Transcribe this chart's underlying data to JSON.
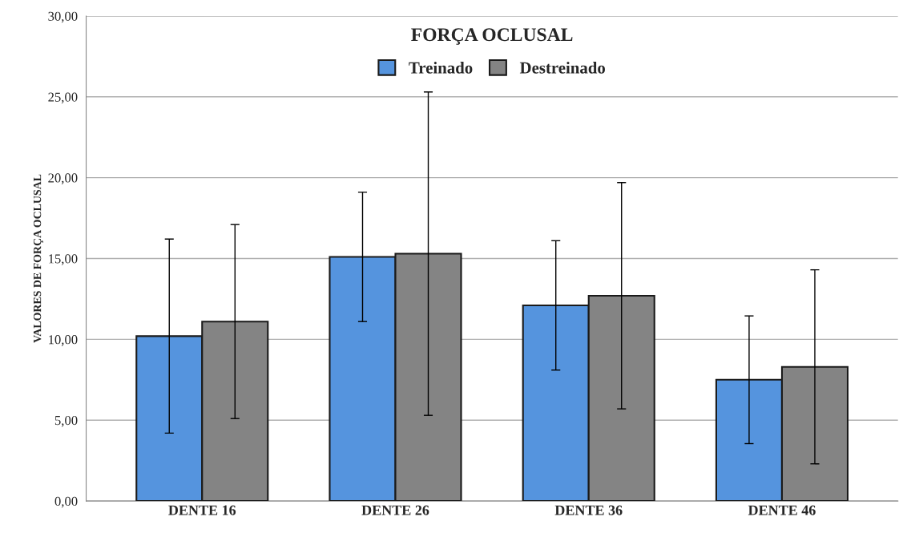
{
  "chart_data": {
    "type": "bar",
    "title": "FORÇA OCLUSAL",
    "ylabel": "VALORES DE FORÇA OCLUSAL",
    "categories": [
      "DENTE 16",
      "DENTE 26",
      "DENTE 36",
      "DENTE 46"
    ],
    "series": [
      {
        "name": "Treinado",
        "color": "#5594de",
        "values": [
          10.2,
          15.1,
          12.1,
          7.5
        ],
        "errors": [
          6.0,
          4.0,
          4.0,
          3.95
        ]
      },
      {
        "name": "Destreinado",
        "color": "#848484",
        "values": [
          11.1,
          15.3,
          12.7,
          8.3
        ],
        "errors": [
          6.0,
          10.0,
          7.0,
          6.0
        ]
      }
    ],
    "ylim": [
      0,
      30
    ],
    "yticks": [
      {
        "value": 0,
        "label": "0,00"
      },
      {
        "value": 5,
        "label": "5,00"
      },
      {
        "value": 10,
        "label": "10,00"
      },
      {
        "value": 15,
        "label": "15,00"
      },
      {
        "value": 20,
        "label": "20,00"
      },
      {
        "value": 25,
        "label": "25,00"
      },
      {
        "value": 30,
        "label": "30,00"
      }
    ],
    "grid": "y",
    "legend": "top"
  }
}
